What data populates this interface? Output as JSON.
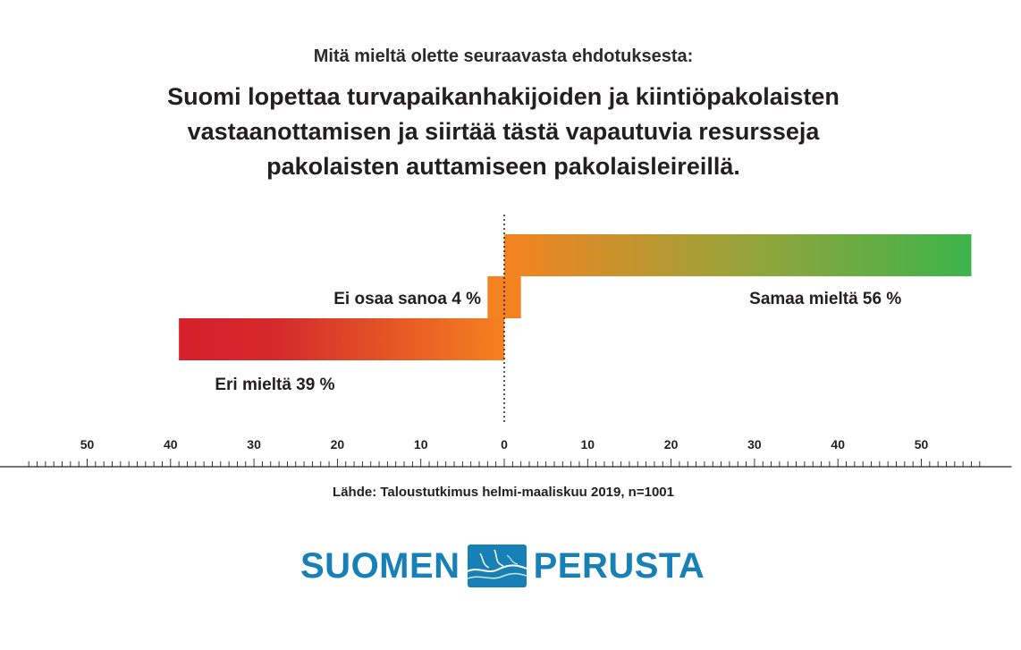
{
  "header": {
    "subtitle": "Mitä mieltä olette seuraavasta ehdotuksesta:",
    "title_lines": [
      "Suomi lopettaa turvapaikanhakijoiden ja kiintiöpakolaisten",
      "vastaanottamisen ja siirtää tästä vapautuvia resursseja",
      "pakolaisten auttamiseen pakolaisleireillä."
    ]
  },
  "chart_data": {
    "type": "bar",
    "orientation": "diverging-horizontal",
    "bars": [
      {
        "label": "Samaa mieltä 56 %",
        "value": 56,
        "direction": "right",
        "colors": [
          "#f58220",
          "#3cb44a"
        ]
      },
      {
        "label": "Ei osaa sanoa 4 %",
        "value": 4,
        "direction": "centered",
        "colors": [
          "#f58220",
          "#f58220"
        ]
      },
      {
        "label": "Eri mieltä 39 %",
        "value": 39,
        "direction": "left",
        "colors": [
          "#d71f2b",
          "#f58220"
        ]
      }
    ],
    "axis": {
      "left_ticks": [
        50,
        40,
        30,
        20,
        10
      ],
      "right_ticks": [
        0,
        10,
        20,
        30,
        40,
        50
      ],
      "xlim": [
        -62,
        62
      ]
    },
    "zero_line": "dotted"
  },
  "source": "Lähde: Taloustutkimus helmi-maaliskuu 2019,  n=1001",
  "logo": {
    "left_word": "SUOMEN",
    "right_word": "PERUSTA",
    "color": "#1780b6",
    "mark_icon": "wave-square-icon"
  }
}
